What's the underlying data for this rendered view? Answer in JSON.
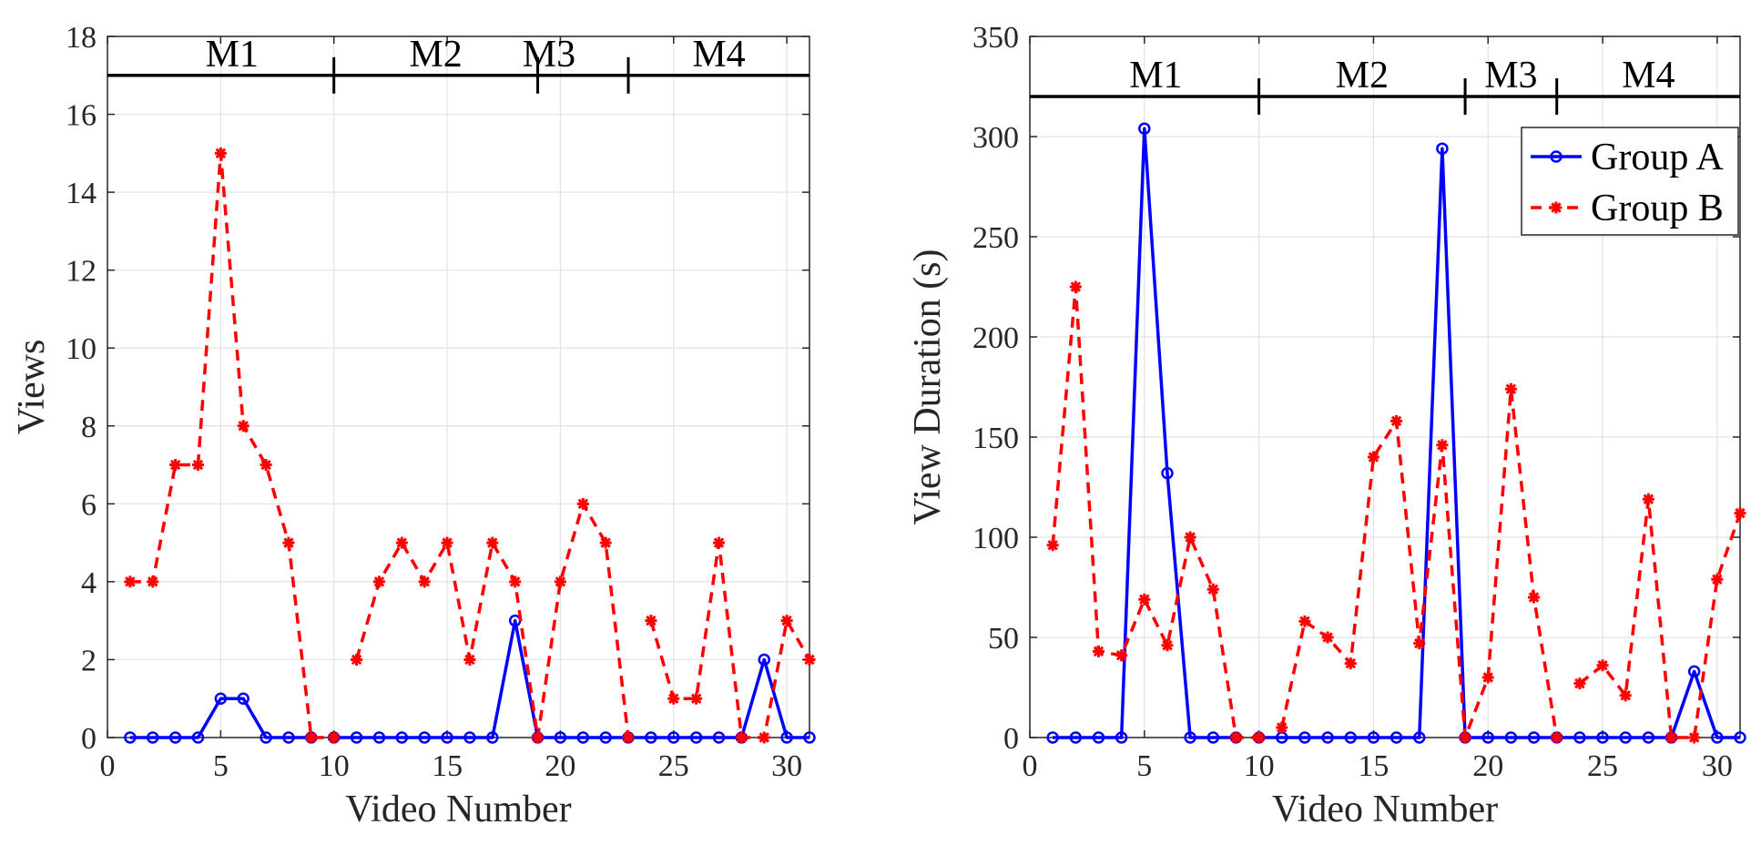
{
  "chart_data": [
    {
      "type": "line",
      "xlabel": "Video Number",
      "ylabel": "Views",
      "xlim": [
        0,
        31
      ],
      "ylim": [
        0,
        18
      ],
      "xticks": [
        0,
        5,
        10,
        15,
        20,
        25,
        30
      ],
      "yticks": [
        0,
        2,
        4,
        6,
        8,
        10,
        12,
        14,
        16,
        18
      ],
      "grid": true,
      "module_bar": {
        "y": 17,
        "boundaries": [
          10,
          19,
          23
        ],
        "labels": [
          {
            "text": "M1",
            "x": 5.5
          },
          {
            "text": "M2",
            "x": 14.5
          },
          {
            "text": "M3",
            "x": 19.5
          },
          {
            "text": "M4",
            "x": 27.0
          }
        ]
      },
      "x": [
        1,
        2,
        3,
        4,
        5,
        6,
        7,
        8,
        9,
        10,
        11,
        12,
        13,
        14,
        15,
        16,
        17,
        18,
        19,
        20,
        21,
        22,
        23,
        24,
        25,
        26,
        27,
        28,
        29,
        30,
        31
      ],
      "series": [
        {
          "name": "Group A",
          "color": "#0000ff",
          "line_style": "solid",
          "marker": "circle",
          "values": [
            0,
            0,
            0,
            0,
            1,
            1,
            0,
            0,
            0,
            0,
            0,
            0,
            0,
            0,
            0,
            0,
            0,
            3,
            0,
            0,
            0,
            0,
            0,
            0,
            0,
            0,
            0,
            0,
            2,
            0,
            0
          ],
          "segments": [
            [
              1,
              9
            ],
            [
              10,
              31
            ]
          ]
        },
        {
          "name": "Group B",
          "color": "#ff0000",
          "line_style": "dashed",
          "marker": "star",
          "values": [
            4,
            4,
            7,
            7,
            15,
            8,
            7,
            5,
            0,
            0,
            2,
            4,
            5,
            4,
            5,
            2,
            5,
            4,
            0,
            4,
            6,
            5,
            0,
            3,
            1,
            1,
            5,
            0,
            0,
            3,
            2
          ],
          "segments": [
            [
              1,
              10
            ],
            [
              11,
              23
            ],
            [
              24,
              31
            ]
          ]
        }
      ]
    },
    {
      "type": "line",
      "xlabel": "Video Number",
      "ylabel": "View Duration (s)",
      "xlim": [
        0,
        31
      ],
      "ylim": [
        0,
        350
      ],
      "xticks": [
        0,
        5,
        10,
        15,
        20,
        25,
        30
      ],
      "yticks": [
        0,
        50,
        100,
        150,
        200,
        250,
        300,
        350
      ],
      "grid": true,
      "legend": {
        "position": "top-right",
        "entries": [
          "Group A",
          "Group B"
        ]
      },
      "module_bar": {
        "y": 320,
        "boundaries": [
          10,
          19,
          23
        ],
        "labels": [
          {
            "text": "M1",
            "x": 5.5
          },
          {
            "text": "M2",
            "x": 14.5
          },
          {
            "text": "M3",
            "x": 21.0
          },
          {
            "text": "M4",
            "x": 27.0
          }
        ]
      },
      "x": [
        1,
        2,
        3,
        4,
        5,
        6,
        7,
        8,
        9,
        10,
        11,
        12,
        13,
        14,
        15,
        16,
        17,
        18,
        19,
        20,
        21,
        22,
        23,
        24,
        25,
        26,
        27,
        28,
        29,
        30,
        31
      ],
      "series": [
        {
          "name": "Group A",
          "color": "#0000ff",
          "line_style": "solid",
          "marker": "circle",
          "values": [
            0,
            0,
            0,
            0,
            304,
            132,
            0,
            0,
            0,
            0,
            0,
            0,
            0,
            0,
            0,
            0,
            0,
            294,
            0,
            0,
            0,
            0,
            0,
            0,
            0,
            0,
            0,
            0,
            33,
            0,
            0
          ],
          "segments": [
            [
              1,
              9
            ],
            [
              10,
              31
            ]
          ]
        },
        {
          "name": "Group B",
          "color": "#ff0000",
          "line_style": "dashed",
          "marker": "star",
          "values": [
            96,
            225,
            43,
            41,
            69,
            46,
            100,
            74,
            0,
            0,
            5,
            58,
            50,
            37,
            140,
            158,
            47,
            146,
            0,
            30,
            174,
            70,
            0,
            27,
            36,
            21,
            119,
            0,
            0,
            79,
            112
          ],
          "segments": [
            [
              1,
              10
            ],
            [
              11,
              23
            ],
            [
              24,
              31
            ]
          ]
        }
      ]
    }
  ]
}
